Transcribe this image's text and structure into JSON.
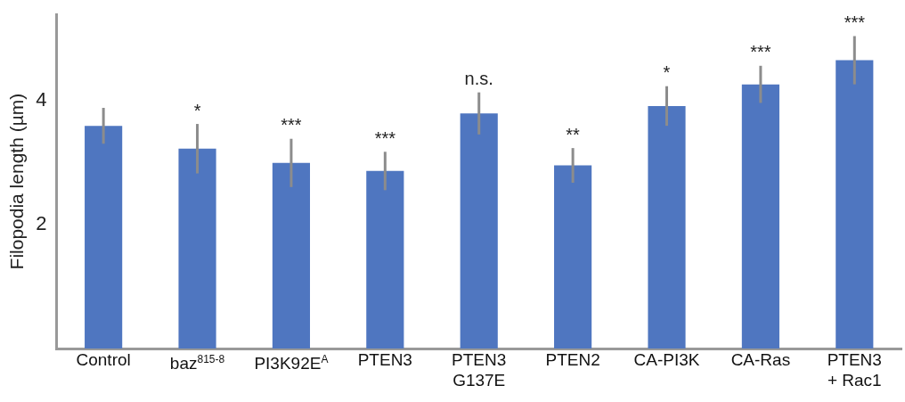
{
  "chart_data": {
    "type": "bar",
    "ylabel": "Filopodia length (µm)",
    "categories": [
      "Control",
      "baz$^{815-8}$",
      "PI3K92E$^{A}$",
      "PTEN3",
      "PTEN3\nG137E",
      "PTEN2",
      "CA-PI3K",
      "CA-Ras",
      "PTEN3\n+ Rac1"
    ],
    "values": [
      3.6,
      3.23,
      3.0,
      2.87,
      3.8,
      2.96,
      3.92,
      4.27,
      4.66
    ],
    "errors": [
      0.29,
      0.4,
      0.39,
      0.31,
      0.34,
      0.28,
      0.32,
      0.3,
      0.39
    ],
    "color": "#4f76c0",
    "ylim": [
      0,
      5.4
    ],
    "yticks": [
      2,
      4
    ],
    "grid": false,
    "legend": false,
    "annotations": [
      {
        "text": "*",
        "x": "baz$^{815-8}$",
        "y": 3.63
      },
      {
        "text": "***",
        "x": "PI3K92E$^{A}$",
        "y": 3.39
      },
      {
        "text": "***",
        "x": "PTEN3",
        "y": 3.18
      },
      {
        "text": "n.s.",
        "x": "PTEN3\nG137E",
        "y": 4.14
      },
      {
        "text": "**",
        "x": "PTEN2",
        "y": 3.24
      },
      {
        "text": "*",
        "x": "CA-PI3K",
        "y": 4.24
      },
      {
        "text": "***",
        "x": "CA-Ras",
        "y": 4.57
      },
      {
        "text": "***",
        "x": "PTEN3\n+ Rac1",
        "y": 5.05
      }
    ]
  }
}
